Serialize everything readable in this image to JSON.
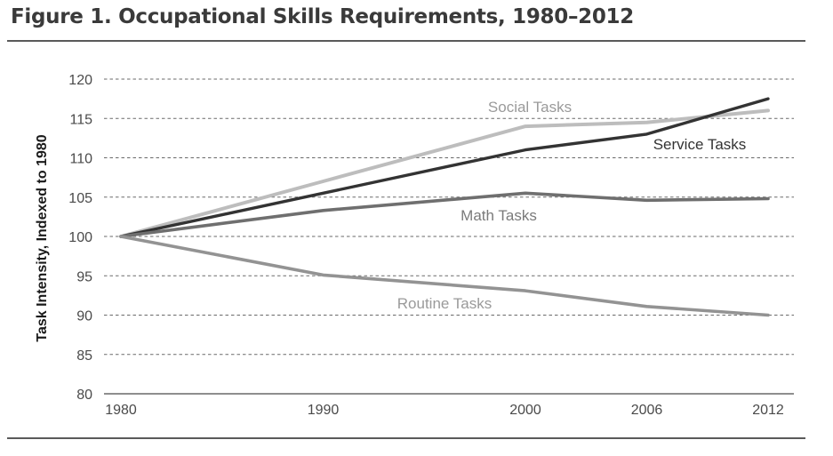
{
  "figure": {
    "title": "Figure 1. Occupational Skills Requirements, 1980–2012"
  },
  "chart_data": {
    "type": "line",
    "title": "Figure 1. Occupational Skills Requirements, 1980–2012",
    "xlabel": "",
    "ylabel": "Task Intensity, Indexed to 1980",
    "x": [
      1980,
      1990,
      2000,
      2006,
      2012
    ],
    "x_tick_labels": [
      "1980",
      "1990",
      "2000",
      "2006",
      "2012"
    ],
    "ylim": [
      80,
      120
    ],
    "y_ticks": [
      80,
      85,
      90,
      95,
      100,
      105,
      110,
      115,
      120
    ],
    "y_tick_labels": [
      "80",
      "85",
      "90",
      "95",
      "100",
      "105",
      "110",
      "115",
      "120"
    ],
    "grid": "horizontal dashed",
    "legend": "none (series labeled inline)",
    "series": [
      {
        "name": "Social Tasks",
        "values": [
          100,
          107,
          114,
          114.5,
          116
        ],
        "color": "#bdbdbd"
      },
      {
        "name": "Service Tasks",
        "values": [
          100,
          105.5,
          111,
          113,
          117.5
        ],
        "color": "#333333"
      },
      {
        "name": "Math Tasks",
        "values": [
          100,
          103.3,
          105.5,
          104.6,
          104.8
        ],
        "color": "#6f6f6f"
      },
      {
        "name": "Routine Tasks",
        "values": [
          100,
          95.1,
          93.1,
          91.1,
          90
        ],
        "color": "#939393"
      }
    ]
  }
}
